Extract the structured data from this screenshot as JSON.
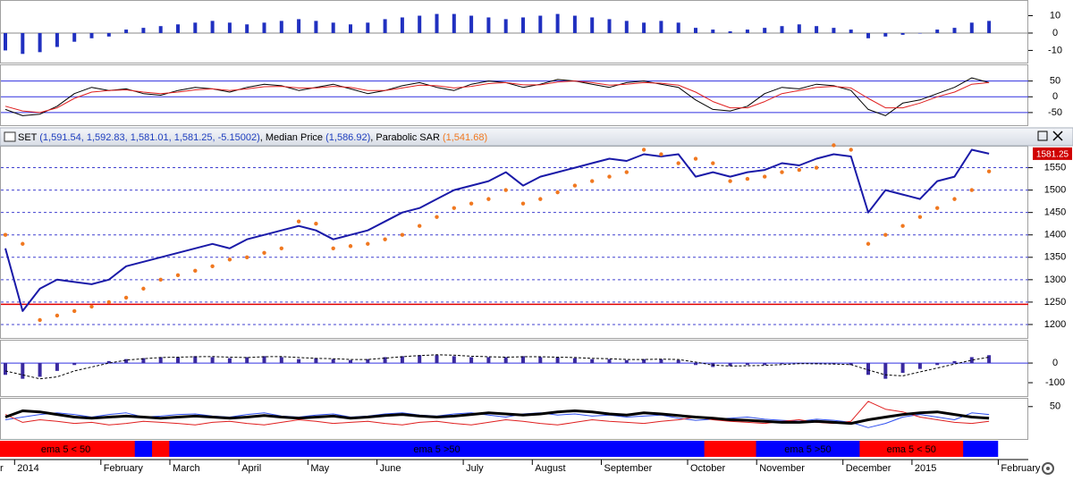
{
  "header": {
    "items": [
      {
        "text": "SET",
        "color": "#000000"
      },
      {
        "text": " (1,591.54, 1,592.83, 1,581.01, 1,581.25, -5.15002)",
        "color": "#1f3fbf"
      },
      {
        "text": ", Median Price ",
        "color": "#000000"
      },
      {
        "text": "(1,586.92)",
        "color": "#1f3fbf"
      },
      {
        "text": ", Parabolic SAR ",
        "color": "#000000"
      },
      {
        "text": "(1,541.68)",
        "color": "#f07820"
      }
    ]
  },
  "time_axis": {
    "categories": [
      "r",
      "2014",
      null,
      null,
      null,
      null,
      "February",
      null,
      null,
      null,
      "March",
      null,
      null,
      null,
      "April",
      null,
      null,
      null,
      "May",
      null,
      null,
      null,
      "June",
      null,
      null,
      null,
      null,
      "July",
      null,
      null,
      null,
      "August",
      null,
      null,
      null,
      "September",
      null,
      null,
      null,
      null,
      "October",
      null,
      null,
      null,
      "November",
      null,
      null,
      null,
      null,
      "December",
      null,
      null,
      null,
      "2015",
      null,
      null,
      null,
      null,
      "February",
      null
    ]
  },
  "chart_data": [
    {
      "type": "bar",
      "ylim": [
        -17,
        18
      ],
      "yticks": [
        -10,
        0,
        10
      ],
      "grid": true,
      "grid_color": "#888888",
      "grid_dash": "none",
      "grid_at": [
        0
      ],
      "series": [
        {
          "color": "#2030c0",
          "values": [
            -10,
            -12,
            -11,
            -8,
            -5,
            -3,
            -2,
            2,
            3,
            4,
            5,
            6,
            7,
            6,
            5,
            6,
            7,
            8,
            7,
            6,
            5,
            6,
            8,
            9,
            10,
            11,
            11,
            10,
            9,
            8,
            9,
            10,
            11,
            10,
            9,
            8,
            7,
            6,
            7,
            6,
            3,
            2,
            1,
            2,
            3,
            4,
            5,
            4,
            3,
            2,
            -3,
            -2,
            -1,
            0,
            2,
            3,
            6,
            7,
            null,
            null
          ]
        }
      ]
    },
    {
      "type": "line",
      "ylim": [
        -90,
        100
      ],
      "yticks": [
        -50,
        0,
        50
      ],
      "grid": true,
      "grid_color": "#3030e0",
      "grid_dash": "none",
      "series": [
        {
          "color": "#000000",
          "width": 1,
          "values": [
            -40,
            -60,
            -55,
            -30,
            10,
            30,
            20,
            25,
            10,
            5,
            20,
            30,
            25,
            15,
            30,
            40,
            35,
            20,
            30,
            40,
            25,
            10,
            20,
            35,
            45,
            30,
            20,
            40,
            50,
            45,
            30,
            40,
            55,
            50,
            40,
            30,
            45,
            50,
            40,
            30,
            -10,
            -40,
            -45,
            -30,
            10,
            30,
            25,
            40,
            35,
            20,
            -40,
            -60,
            -20,
            -10,
            10,
            30,
            60,
            45,
            null,
            null
          ]
        },
        {
          "color": "#e02020",
          "width": 1,
          "values": [
            -30,
            -45,
            -50,
            -35,
            -5,
            15,
            20,
            22,
            15,
            10,
            15,
            22,
            25,
            20,
            25,
            32,
            33,
            28,
            28,
            33,
            30,
            20,
            20,
            28,
            37,
            35,
            28,
            33,
            42,
            45,
            38,
            38,
            47,
            50,
            45,
            37,
            40,
            45,
            43,
            37,
            15,
            -15,
            -35,
            -35,
            -15,
            10,
            20,
            30,
            33,
            28,
            -5,
            -35,
            -35,
            -20,
            0,
            15,
            40,
            45,
            null,
            null
          ]
        }
      ]
    },
    {
      "type": "line",
      "ylim": [
        1170,
        1595
      ],
      "yticks": [
        1200,
        1250,
        1300,
        1350,
        1400,
        1450,
        1500,
        1550
      ],
      "grid": true,
      "grid_color": "#4040d0",
      "grid_dash": "3,3",
      "reference_line": 1245,
      "reference_color": "#e00000",
      "series": [
        {
          "color": "#1a1aa8",
          "width": 2,
          "values": [
            1370,
            1230,
            1280,
            1300,
            1295,
            1290,
            1300,
            1330,
            1340,
            1350,
            1360,
            1370,
            1380,
            1370,
            1390,
            1400,
            1410,
            1420,
            1410,
            1390,
            1400,
            1410,
            1430,
            1450,
            1460,
            1480,
            1500,
            1510,
            1520,
            1540,
            1510,
            1530,
            1540,
            1550,
            1560,
            1570,
            1565,
            1580,
            1575,
            1580,
            1530,
            1540,
            1530,
            1540,
            1545,
            1560,
            1555,
            1570,
            1580,
            1575,
            1450,
            1500,
            1490,
            1480,
            1520,
            1530,
            1590,
            1581.25,
            null,
            null
          ]
        },
        {
          "type": "dots",
          "color": "#f07820",
          "values": [
            1400,
            1380,
            1210,
            1220,
            1230,
            1240,
            1250,
            1260,
            1280,
            1300,
            1310,
            1320,
            1330,
            1345,
            1350,
            1360,
            1370,
            1430,
            1425,
            1370,
            1375,
            1380,
            1390,
            1400,
            1420,
            1440,
            1460,
            1470,
            1480,
            1500,
            1470,
            1480,
            1495,
            1510,
            1520,
            1530,
            1540,
            1590,
            1580,
            1560,
            1570,
            1560,
            1520,
            1525,
            1530,
            1540,
            1545,
            1550,
            1600,
            1590,
            1380,
            1400,
            1420,
            1440,
            1460,
            1480,
            1500,
            1541.68,
            null,
            null
          ]
        }
      ]
    },
    {
      "type": "bar",
      "ylim": [
        -168,
        114
      ],
      "yticks": [
        -100,
        0
      ],
      "grid": true,
      "grid_color": "#3030e0",
      "grid_dash": "none",
      "grid_at": [
        0
      ],
      "series": [
        {
          "color": "#3a2aa0",
          "values": [
            -60,
            -80,
            -70,
            -40,
            -10,
            0,
            10,
            20,
            25,
            30,
            30,
            35,
            30,
            25,
            30,
            35,
            30,
            20,
            25,
            20,
            15,
            20,
            30,
            35,
            40,
            40,
            35,
            30,
            30,
            30,
            35,
            30,
            30,
            25,
            20,
            20,
            15,
            20,
            20,
            15,
            -10,
            -20,
            -15,
            -10,
            -10,
            -5,
            0,
            -5,
            -5,
            -10,
            -60,
            -80,
            -50,
            -30,
            -10,
            10,
            30,
            40,
            null,
            null
          ]
        },
        {
          "type": "line",
          "color": "#000000",
          "width": 1,
          "dash": "3,2",
          "values": [
            -40,
            -60,
            -80,
            -70,
            -40,
            -20,
            0,
            15,
            22,
            28,
            30,
            32,
            33,
            30,
            28,
            32,
            33,
            28,
            24,
            22,
            18,
            18,
            25,
            32,
            38,
            42,
            40,
            35,
            32,
            30,
            32,
            32,
            30,
            28,
            24,
            22,
            18,
            18,
            20,
            18,
            5,
            -10,
            -15,
            -14,
            -12,
            -8,
            -3,
            -4,
            -5,
            -8,
            -35,
            -60,
            -65,
            -45,
            -25,
            -5,
            15,
            30,
            null,
            null
          ]
        }
      ]
    },
    {
      "type": "line",
      "ylim": [
        -10,
        65
      ],
      "yticks": [
        50
      ],
      "grid": false,
      "series": [
        {
          "color": "#3050f0",
          "width": 1,
          "values": [
            25,
            30,
            35,
            38,
            35,
            30,
            35,
            38,
            30,
            32,
            35,
            36,
            32,
            30,
            35,
            38,
            32,
            30,
            34,
            36,
            30,
            32,
            36,
            38,
            34,
            32,
            36,
            38,
            34,
            30,
            36,
            38,
            34,
            36,
            32,
            34,
            30,
            32,
            34,
            28,
            24,
            26,
            28,
            30,
            26,
            24,
            22,
            26,
            24,
            20,
            10,
            18,
            30,
            35,
            30,
            25,
            38,
            35,
            null,
            null
          ]
        },
        {
          "color": "#e02020",
          "width": 1,
          "values": [
            35,
            20,
            25,
            22,
            18,
            20,
            15,
            18,
            22,
            20,
            18,
            15,
            20,
            22,
            18,
            15,
            20,
            25,
            22,
            18,
            20,
            22,
            18,
            15,
            20,
            22,
            18,
            15,
            20,
            25,
            22,
            18,
            15,
            20,
            25,
            22,
            20,
            18,
            22,
            25,
            30,
            25,
            22,
            20,
            18,
            22,
            25,
            20,
            18,
            22,
            60,
            45,
            40,
            30,
            25,
            20,
            18,
            22,
            null,
            null
          ]
        },
        {
          "color": "#000000",
          "width": 3,
          "values": [
            30,
            42,
            40,
            35,
            30,
            28,
            30,
            32,
            30,
            28,
            30,
            32,
            30,
            28,
            30,
            33,
            30,
            28,
            30,
            32,
            28,
            30,
            33,
            35,
            32,
            30,
            32,
            35,
            38,
            36,
            34,
            36,
            40,
            42,
            40,
            36,
            34,
            38,
            36,
            33,
            30,
            28,
            25,
            24,
            22,
            20,
            20,
            22,
            20,
            18,
            25,
            30,
            35,
            38,
            40,
            35,
            30,
            28,
            null,
            null
          ]
        }
      ]
    },
    {
      "type": "band",
      "colors": [
        "#ff0000",
        "#ff0000",
        "#ff0000",
        "#ff0000",
        "#ff0000",
        "#ff0000",
        "#ff0000",
        "#ff0000",
        "#0000ff",
        "#ff0000",
        "#0000ff",
        "#0000ff",
        "#0000ff",
        "#0000ff",
        "#0000ff",
        "#0000ff",
        "#0000ff",
        "#0000ff",
        "#0000ff",
        "#0000ff",
        "#0000ff",
        "#0000ff",
        "#0000ff",
        "#0000ff",
        "#0000ff",
        "#0000ff",
        "#0000ff",
        "#0000ff",
        "#0000ff",
        "#0000ff",
        "#0000ff",
        "#0000ff",
        "#0000ff",
        "#0000ff",
        "#0000ff",
        "#0000ff",
        "#0000ff",
        "#0000ff",
        "#0000ff",
        "#0000ff",
        "#0000ff",
        "#ff0000",
        "#ff0000",
        "#ff0000",
        "#0000ff",
        "#0000ff",
        "#0000ff",
        "#0000ff",
        "#0000ff",
        "#0000ff",
        "#ff0000",
        "#ff0000",
        "#ff0000",
        "#ff0000",
        "#ff0000",
        "#ff0000",
        "#0000ff",
        "#0000ff",
        null,
        null
      ],
      "labels": [
        "ema 5 < 50",
        null,
        null,
        "ema 5 >50",
        null,
        "ema 5 >50",
        "ema 5 < 50",
        null
      ]
    }
  ]
}
